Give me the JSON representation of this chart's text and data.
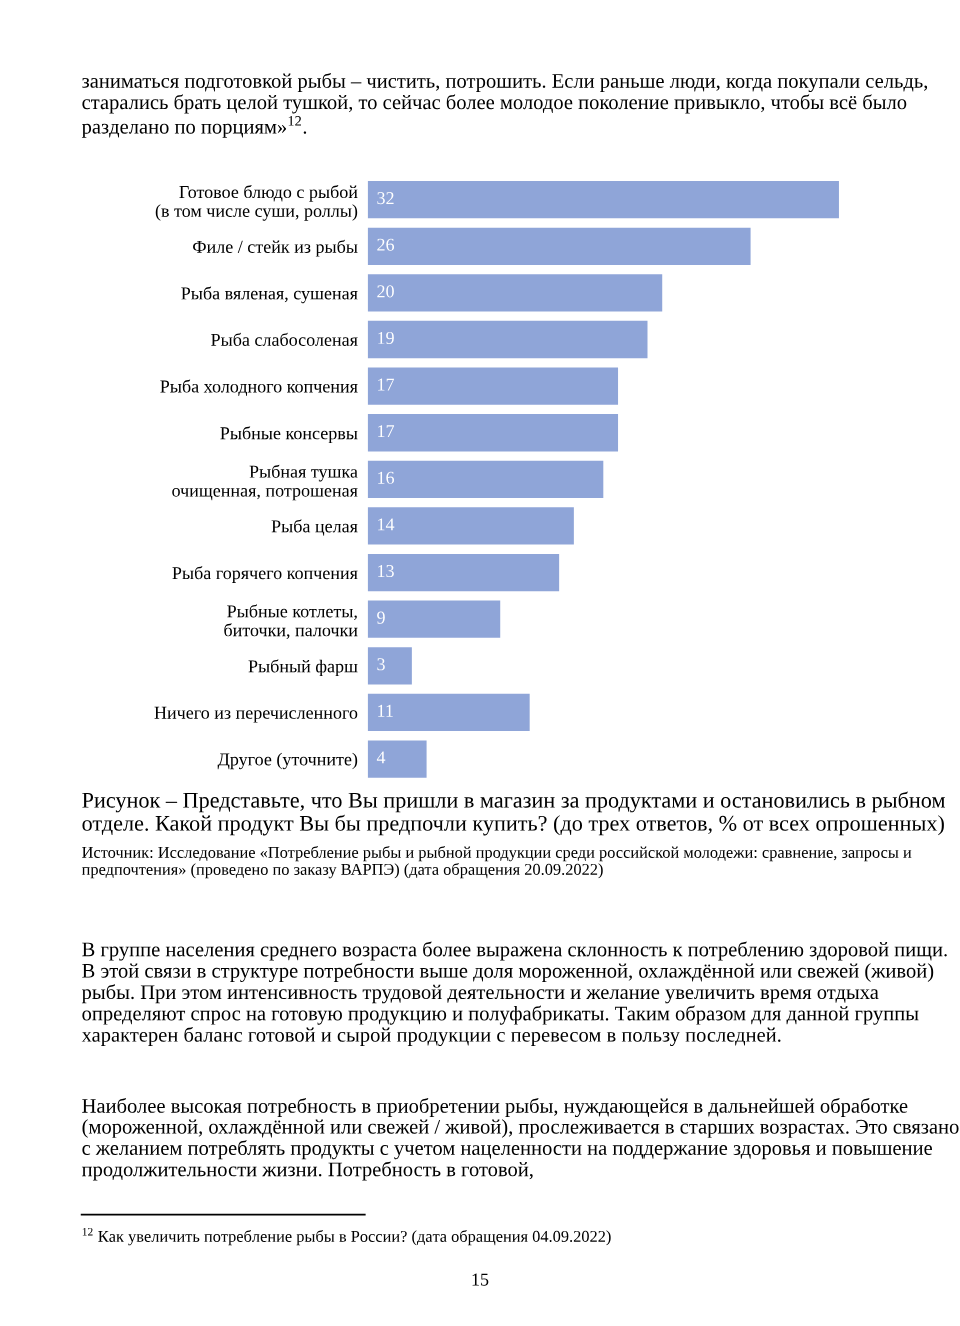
{
  "chart_data": {
    "type": "bar",
    "orientation": "horizontal",
    "categories": [
      "Готовое блюдо с рыбой\n(в том числе суши, роллы)",
      "Филе / стейк из рыбы",
      "Рыба вяленая, сушеная",
      "Рыба слабосоленая",
      "Рыба холодного копчения",
      "Рыбные консервы",
      "Рыбная тушка\nочищенная, потрошеная",
      "Рыба целая",
      "Рыба горячего копчения",
      "Рыбные котлеты,\nбиточки, палочки",
      "Рыбный фарш",
      "Ничего из перечисленного",
      "Другое (уточните)"
    ],
    "values": [
      32,
      26,
      20,
      19,
      17,
      17,
      16,
      14,
      13,
      9,
      3,
      11,
      4
    ],
    "color": "#8fa5d8",
    "data_labels": true,
    "annotations": [
      "заниматься подготовкой рыбы – чистить, потрошить. Если раньше люди, когда покупали сельдь, старались брать целой тушкой, то сейчас более молодое поколение привыкло, чтобы всё было разделано по порциям»$^{12}$.",
      "Рисунок – Представьте, что Вы пришли в магазин за продуктами и остановились в рыбном отделе. Какой продукт Вы бы предпочли купить? (до трех ответов, % от всех опрошенных)",
      "Источник: Исследование «Потребление рыбы и рыбной продукции среди российской молодежи: сравнение, запросы и предпочтения» (проведено по заказу ВАРПЭ) (дата обращения 20.09.2022)",
      "В группе населения среднего возраста более выражена склонность к потреблению здоровой пищи. В этой связи в структуре потребности выше доля мороженной, охлаждённой или свежей (живой) рыбы. При этом интенсивность трудовой деятельности и желание увеличить время отдыха определяют спрос на готовую продукцию и полуфабрикаты. Таким образом для данной группы характерен баланс готовой и сырой продукции с перевесом в пользу последней.",
      "Наиболее высокая потребность в приобретении рыбы, нуждающейся в дальнейшей обработке (мороженной, охлаждённой или свежей / живой), прослеживается в старших возрастах. Это связано с желанием потреблять продукты с учетом нацеленности на поддержание здоровья и повышение продолжительности жизни. Потребность в готовой,",
      "$^{12}$ Как увеличить потребление рыбы в России? (дата обращения 04.09.2022)",
      "15"
    ]
  }
}
